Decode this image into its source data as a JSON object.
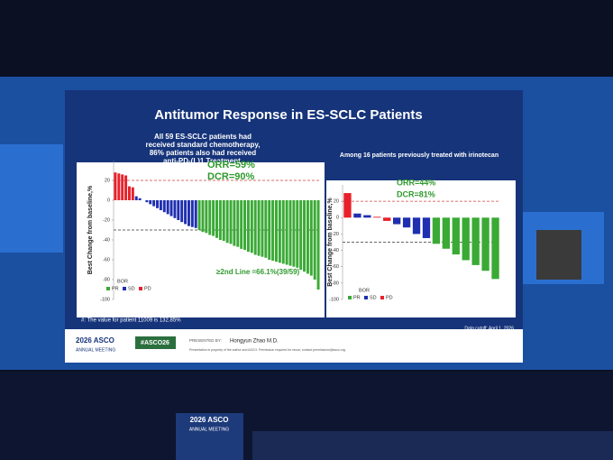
{
  "slide": {
    "title": "Antitumor Response in ES-SCLC Patients",
    "footnote": "#: The value for patient 11009 is 132.85%",
    "data_cutoff": "Data cutoff: April 1, 2026",
    "footer": {
      "meeting_year": "2026 ASCO",
      "meeting_name": "ANNUAL MEETING",
      "hashtag": "#ASCO26",
      "presented_by": "PRESENTED BY:",
      "presenter": "Hongyun Zhao M.D.",
      "notice": "Presentation is property of the author and ASCO. Permission required for reuse; contact permissions@asco.org."
    },
    "podium": {
      "year": "2026 ASCO",
      "name": "ANNUAL MEETING"
    }
  },
  "chart_data": [
    {
      "type": "bar",
      "title": "All 59 ES-SCLC patients had received standard chemotherapy, 86% patients also  had received anti-PD-(L)1 Treatment.",
      "ylabel": "Best Change from baseline,%",
      "ylim": [
        -100,
        40
      ],
      "yticks": [
        -100,
        -80,
        -60,
        -40,
        -20,
        0,
        20
      ],
      "values": [
        28,
        27,
        26,
        25,
        14,
        13,
        4,
        2,
        0,
        -2,
        -4,
        -6,
        -8,
        -10,
        -12,
        -14,
        -16,
        -18,
        -20,
        -22,
        -24,
        -26,
        -27,
        -28,
        -30,
        -32,
        -33,
        -35,
        -36,
        -38,
        -40,
        -41,
        -43,
        -44,
        -46,
        -47,
        -49,
        -50,
        -52,
        -53,
        -55,
        -56,
        -57,
        -58,
        -60,
        -61,
        -62,
        -63,
        -64,
        -65,
        -66,
        -67,
        -68,
        -70,
        -72,
        -74,
        -76,
        -80,
        -90
      ],
      "colors": [
        "#e8202a",
        "#e8202a",
        "#e8202a",
        "#e8202a",
        "#e8202a",
        "#e8202a",
        "#1f2fb0",
        "#1f2fb0",
        "#1f2fb0",
        "#1f2fb0",
        "#1f2fb0",
        "#1f2fb0",
        "#1f2fb0",
        "#1f2fb0",
        "#1f2fb0",
        "#1f2fb0",
        "#1f2fb0",
        "#1f2fb0",
        "#1f2fb0",
        "#1f2fb0",
        "#1f2fb0",
        "#1f2fb0",
        "#1f2fb0",
        "#1f2fb0",
        "#3aaa35",
        "#3aaa35",
        "#3aaa35",
        "#3aaa35",
        "#3aaa35",
        "#3aaa35",
        "#3aaa35",
        "#3aaa35",
        "#3aaa35",
        "#3aaa35",
        "#3aaa35",
        "#3aaa35",
        "#3aaa35",
        "#3aaa35",
        "#3aaa35",
        "#3aaa35",
        "#3aaa35",
        "#3aaa35",
        "#3aaa35",
        "#3aaa35",
        "#3aaa35",
        "#3aaa35",
        "#3aaa35",
        "#3aaa35",
        "#3aaa35",
        "#3aaa35",
        "#3aaa35",
        "#3aaa35",
        "#3aaa35",
        "#3aaa35",
        "#3aaa35",
        "#3aaa35",
        "#3aaa35",
        "#3aaa35",
        "#3aaa35"
      ],
      "reference_lines": [
        {
          "value": 20,
          "color": "#d04040"
        },
        {
          "value": -30,
          "color": "#333333"
        }
      ],
      "annotations": [
        "ORR=59%",
        "DCR=90%",
        "≥2nd Line =66.1%(39/59)"
      ],
      "legend_title": "BOR",
      "legend": [
        {
          "name": "PR",
          "color": "#3aaa35"
        },
        {
          "name": "SD",
          "color": "#1f2fb0"
        },
        {
          "name": "PD",
          "color": "#e8202a"
        }
      ]
    },
    {
      "type": "bar",
      "title": "Among 16 patients previously treated with irinotecan",
      "ylabel": "Best Change from baseline,%",
      "ylim": [
        -100,
        40
      ],
      "yticks": [
        -100,
        -80,
        -60,
        -40,
        -20,
        0,
        20
      ],
      "values": [
        30,
        5,
        3,
        1,
        -4,
        -8,
        -12,
        -20,
        -25,
        -32,
        -38,
        -45,
        -52,
        -58,
        -65,
        -75
      ],
      "colors": [
        "#e8202a",
        "#1f2fb0",
        "#1f2fb0",
        "#e8202a",
        "#e8202a",
        "#1f2fb0",
        "#1f2fb0",
        "#1f2fb0",
        "#1f2fb0",
        "#3aaa35",
        "#3aaa35",
        "#3aaa35",
        "#3aaa35",
        "#3aaa35",
        "#3aaa35",
        "#3aaa35"
      ],
      "reference_lines": [
        {
          "value": 20,
          "color": "#d04040"
        },
        {
          "value": -30,
          "color": "#333333"
        }
      ],
      "annotations": [
        "ORR=44%",
        "DCR=81%"
      ],
      "legend_title": "BOR",
      "legend": [
        {
          "name": "PR",
          "color": "#3aaa35"
        },
        {
          "name": "SD",
          "color": "#1f2fb0"
        },
        {
          "name": "PD",
          "color": "#e8202a"
        }
      ]
    }
  ]
}
